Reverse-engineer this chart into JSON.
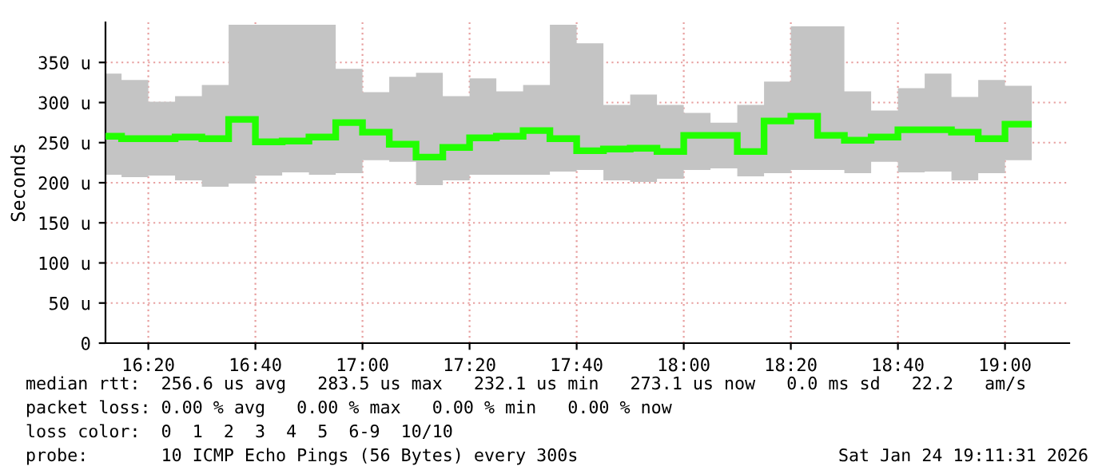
{
  "chart_data": {
    "type": "step",
    "ylabel": "Seconds",
    "x": [
      "2026-01-24T16:15",
      "2026-01-24T16:20",
      "2026-01-24T16:25",
      "2026-01-24T16:30",
      "2026-01-24T16:35",
      "2026-01-24T16:40",
      "2026-01-24T16:45",
      "2026-01-24T16:50",
      "2026-01-24T16:55",
      "2026-01-24T17:00",
      "2026-01-24T17:05",
      "2026-01-24T17:10",
      "2026-01-24T17:15",
      "2026-01-24T17:20",
      "2026-01-24T17:25",
      "2026-01-24T17:30",
      "2026-01-24T17:35",
      "2026-01-24T17:40",
      "2026-01-24T17:45",
      "2026-01-24T17:50",
      "2026-01-24T17:55",
      "2026-01-24T18:00",
      "2026-01-24T18:05",
      "2026-01-24T18:10",
      "2026-01-24T18:15",
      "2026-01-24T18:20",
      "2026-01-24T18:25",
      "2026-01-24T18:30",
      "2026-01-24T18:35",
      "2026-01-24T18:40",
      "2026-01-24T18:45",
      "2026-01-24T18:50",
      "2026-01-24T18:55",
      "2026-01-24T19:00",
      "2026-01-24T19:05"
    ],
    "series": [
      {
        "color": "#22ff00",
        "values": [
          258,
          255,
          255,
          257,
          255,
          279,
          251,
          252,
          257,
          275,
          263,
          248,
          232,
          244,
          256,
          258,
          265,
          255,
          240,
          242,
          243,
          239,
          259,
          259,
          239,
          277,
          283,
          259,
          253,
          257,
          266,
          266,
          263,
          255,
          273
        ],
        "lower": [
          210,
          207,
          209,
          203,
          195,
          199,
          209,
          213,
          210,
          212,
          228,
          226,
          197,
          203,
          210,
          210,
          210,
          214,
          216,
          203,
          201,
          205,
          216,
          218,
          208,
          212,
          216,
          216,
          212,
          226,
          213,
          214,
          203,
          212,
          228
        ],
        "upper": [
          336,
          328,
          301,
          308,
          322,
          397,
          397,
          397,
          397,
          342,
          313,
          332,
          337,
          308,
          330,
          314,
          322,
          397,
          374,
          297,
          310,
          297,
          287,
          275,
          297,
          326,
          395,
          395,
          314,
          290,
          318,
          336,
          307,
          328,
          321
        ]
      }
    ],
    "xlim": [
      "2026-01-24T16:12",
      "2026-01-24T19:12"
    ],
    "xticks": [
      {
        "value": "2026-01-24T16:20",
        "label": "16:20"
      },
      {
        "value": "2026-01-24T16:40",
        "label": "16:40"
      },
      {
        "value": "2026-01-24T17:00",
        "label": "17:00"
      },
      {
        "value": "2026-01-24T17:20",
        "label": "17:20"
      },
      {
        "value": "2026-01-24T17:40",
        "label": "17:40"
      },
      {
        "value": "2026-01-24T18:00",
        "label": "18:00"
      },
      {
        "value": "2026-01-24T18:20",
        "label": "18:20"
      },
      {
        "value": "2026-01-24T18:40",
        "label": "18:40"
      },
      {
        "value": "2026-01-24T19:00",
        "label": "19:00"
      }
    ],
    "ylim": [
      0,
      400
    ],
    "yticks": [
      0,
      {
        "value": 50,
        "label": "50 u"
      },
      {
        "value": 100,
        "label": "100 u"
      },
      {
        "value": 150,
        "label": "150 u"
      },
      {
        "value": 200,
        "label": "200 u"
      },
      {
        "value": 250,
        "label": "250 u"
      },
      {
        "value": 300,
        "label": "300 u"
      },
      {
        "value": 350,
        "label": "350 u"
      }
    ],
    "grid": true,
    "annotations": [
      "median rtt:  256.6 us avg   283.5 us max   232.1 us min   273.1 us now   0.0 ms sd   22.2   am/s",
      "packet loss: 0.00 % avg   0.00 % max   0.00 % min   0.00 % now",
      "loss color:  0  1  2  3  4  5  6-9  10/10",
      "probe:       10 ICMP Echo Pings (56 Bytes) every 300s",
      "Sat Jan 24 19:11:31 2026"
    ]
  }
}
